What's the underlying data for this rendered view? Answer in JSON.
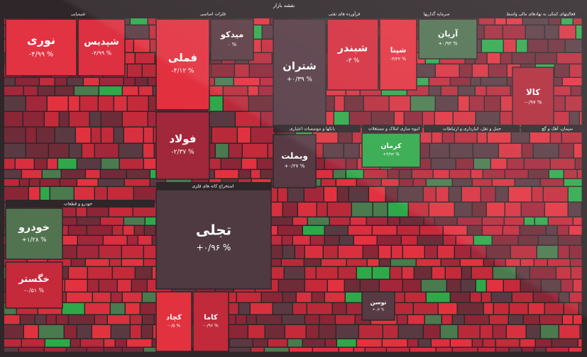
{
  "title": "نقشه بازار",
  "sectors": [
    {
      "label": "شیمیایی"
    },
    {
      "label": "فلزات اساسی"
    },
    {
      "label": "فرآورده های نفتی"
    },
    {
      "label": "سرمایه گذاریها"
    },
    {
      "label": "فعالیتهای کمکی به نهادهای مالی واسط"
    },
    {
      "label": "استخراج کانه های فلزی"
    },
    {
      "label": "خودرو و قطعات"
    },
    {
      "label": "بانکها و موسسات اعتباری"
    },
    {
      "label": "انبوه سازی املاک و مستغلات"
    },
    {
      "label": "حمل و نقل، انبارداری و ارتباطات"
    },
    {
      "label": "سیمان، آهک و گچ"
    }
  ],
  "tiles": [
    {
      "symbol": "نوری",
      "change": "-۴/۹۹ %",
      "color": "#e23342"
    },
    {
      "symbol": "شپدیس",
      "change": "-۴/۹۹ %",
      "color": "#dd3040"
    },
    {
      "symbol": "فملی",
      "change": "-۴/۱۲ %",
      "color": "#e3303f"
    },
    {
      "symbol": "فولاد",
      "change": "-۲/۳۷ %",
      "color": "#a0283a"
    },
    {
      "symbol": "میدکو",
      "change": "۰ %",
      "color": "#5a3a42"
    },
    {
      "symbol": "تجلی",
      "change": "+۰/۹۶ %",
      "color": "#4f3a42"
    },
    {
      "symbol": "خودرو",
      "change": "+۱/۲۸ %",
      "color": "#527350"
    },
    {
      "symbol": "خگستر",
      "change": "-۰/۵۱ %",
      "color": "#c52a3a"
    },
    {
      "symbol": "شتران",
      "change": "+۰/۳۹ %",
      "color": "#553a44"
    },
    {
      "symbol": "شبندر",
      "change": "-۳ %",
      "color": "#d42c3c"
    },
    {
      "symbol": "شپنا",
      "change": "-۳/۲۲ %",
      "color": "#e2323f"
    },
    {
      "symbol": "آریان",
      "change": "+۰/۹۳ %",
      "color": "#4f7050"
    },
    {
      "symbol": "کالا",
      "change": "-۰/۹۷ %",
      "color": "#b02838"
    },
    {
      "symbol": "وبملت",
      "change": "+۰/۲۷ %",
      "color": "#573a44"
    },
    {
      "symbol": "کرمان",
      "change": "+۳/۹۴ %",
      "color": "#2fa84a"
    },
    {
      "symbol": "کچاد",
      "change": "-۰/۵ %",
      "color": "#e2323f"
    },
    {
      "symbol": "کاما",
      "change": "-۰/۹۶ %",
      "color": "#c02a3a"
    },
    {
      "symbol": "توسن",
      "change": "+۰/۳ %",
      "color": "#563a44"
    }
  ]
}
